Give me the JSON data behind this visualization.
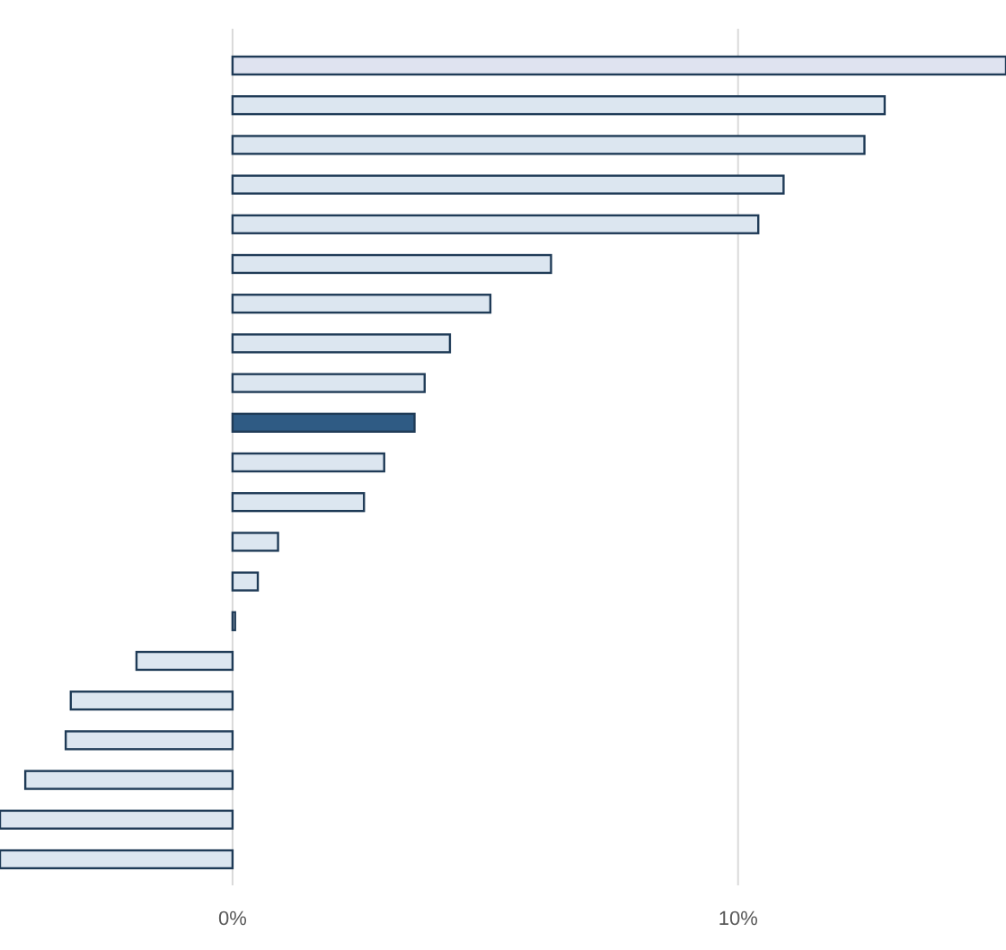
{
  "chart_data": {
    "type": "bar",
    "orientation": "horizontal",
    "categories": [
      null,
      null,
      null,
      null,
      null,
      null,
      null,
      null,
      null,
      null,
      null,
      null,
      null,
      null,
      null,
      null,
      null,
      null,
      null,
      null,
      null
    ],
    "values": [
      15.3,
      12.9,
      12.5,
      10.9,
      10.4,
      6.3,
      5.1,
      4.3,
      3.8,
      3.6,
      3.0,
      2.6,
      0.9,
      0.5,
      0.05,
      -1.9,
      -3.2,
      -3.3,
      -4.1,
      -4.6,
      -4.6
    ],
    "colors": [
      "#dfe3f0",
      "#dce6f0",
      "#dce6f0",
      "#dce6f0",
      "#dce6f0",
      "#dce6f0",
      "#dce6f0",
      "#dce6f0",
      "#dce6f0",
      "#2f5b84",
      "#dce6f0",
      "#dce6f0",
      "#dce6f0",
      "#dce6f0",
      "#dce6f0",
      "#dce6f0",
      "#dce6f0",
      "#dce6f0",
      "#dce6f0",
      "#dce6f0",
      "#dce6f0"
    ],
    "xlim": [
      -4.6,
      15.3
    ],
    "xticks": [
      {
        "value": 0,
        "label": "0%"
      },
      {
        "value": 10,
        "label": "10%"
      }
    ],
    "grid": "x"
  }
}
